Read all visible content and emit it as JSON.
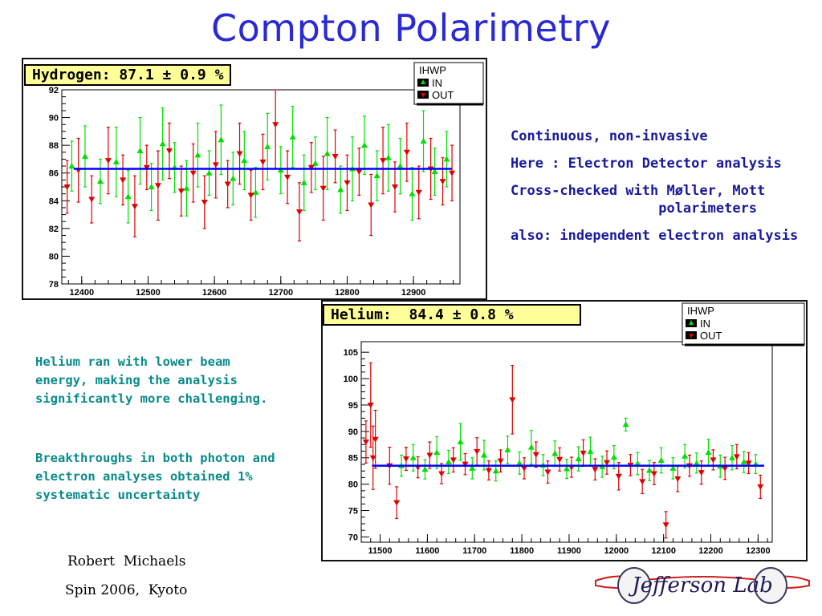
{
  "title": "Compton Polarimetry",
  "bullets": [
    "Continuous, non-invasive",
    "Here : Electron Detector analysis",
    "Cross-checked with Møller, Mott",
    "                  polarimeters",
    "also: independent electron analysis"
  ],
  "note1": [
    "Helium ran with lower beam",
    "energy, making the analysis",
    "significantly more challenging."
  ],
  "note2": [
    "Breakthroughs in both photon and",
    "electron analyses obtained 1%",
    "systematic uncertainty"
  ],
  "author": "Robert  Michaels",
  "event": "Spin 2006,  Kyoto",
  "logo_text": "Jefferson Lab",
  "colors": {
    "title": "#2a2ad4",
    "in": "#00e000",
    "out": "#e00000",
    "fit": "#0000ff",
    "note": "#0a8a8a"
  },
  "chart_data": [
    {
      "type": "scatter",
      "label": "Hydrogen: 87.1 ± 0.9 %",
      "legend": {
        "title": "IHWP",
        "entries": [
          "IN",
          "OUT"
        ],
        "placement": "top-right"
      },
      "xlim": [
        12370,
        12970
      ],
      "ylim": [
        78,
        92
      ],
      "xticks": [
        12400,
        12500,
        12600,
        12700,
        12800,
        12900
      ],
      "yticks": [
        78,
        80,
        82,
        84,
        86,
        88,
        90,
        92
      ],
      "fit_value": 86.3,
      "series": [
        {
          "name": "IN",
          "points": [
            [
              12385,
              86.5,
              1.8
            ],
            [
              12405,
              87.2,
              2.2
            ],
            [
              12428,
              85.4,
              1.6
            ],
            [
              12452,
              86.8,
              2.5
            ],
            [
              12470,
              84.3,
              1.9
            ],
            [
              12488,
              87.6,
              2.4
            ],
            [
              12505,
              85.0,
              1.7
            ],
            [
              12522,
              88.1,
              2.6
            ],
            [
              12540,
              86.4,
              1.8
            ],
            [
              12558,
              84.9,
              2.0
            ],
            [
              12575,
              87.3,
              2.3
            ],
            [
              12592,
              86.0,
              1.6
            ],
            [
              12610,
              88.4,
              2.5
            ],
            [
              12628,
              85.6,
              1.9
            ],
            [
              12645,
              86.9,
              2.1
            ],
            [
              12662,
              84.6,
              1.8
            ],
            [
              12680,
              87.9,
              2.4
            ],
            [
              12700,
              86.2,
              1.7
            ],
            [
              12718,
              88.6,
              2.2
            ],
            [
              12735,
              85.3,
              2.0
            ],
            [
              12752,
              86.7,
              1.9
            ],
            [
              12770,
              87.4,
              2.6
            ],
            [
              12790,
              84.8,
              1.7
            ],
            [
              12808,
              86.3,
              2.3
            ],
            [
              12826,
              88.0,
              2.1
            ],
            [
              12845,
              85.8,
              1.8
            ],
            [
              12862,
              87.1,
              2.4
            ],
            [
              12880,
              86.5,
              2.0
            ],
            [
              12898,
              84.5,
              1.9
            ],
            [
              12915,
              88.3,
              2.2
            ],
            [
              12932,
              86.1,
              1.7
            ],
            [
              12950,
              87.0,
              2.0
            ]
          ]
        },
        {
          "name": "OUT",
          "points": [
            [
              12378,
              85.0,
              1.9
            ],
            [
              12395,
              86.2,
              2.3
            ],
            [
              12415,
              84.1,
              1.7
            ],
            [
              12440,
              86.9,
              2.4
            ],
            [
              12462,
              85.5,
              1.8
            ],
            [
              12480,
              83.6,
              2.2
            ],
            [
              12498,
              86.4,
              1.6
            ],
            [
              12515,
              85.1,
              2.5
            ],
            [
              12532,
              87.6,
              2.0
            ],
            [
              12550,
              84.7,
              1.8
            ],
            [
              12568,
              86.0,
              2.1
            ],
            [
              12585,
              83.9,
              1.9
            ],
            [
              12602,
              86.6,
              2.4
            ],
            [
              12620,
              85.2,
              1.7
            ],
            [
              12638,
              87.4,
              2.2
            ],
            [
              12655,
              84.4,
              1.8
            ],
            [
              12673,
              86.8,
              2.0
            ],
            [
              12692,
              89.5,
              3.2
            ],
            [
              12710,
              85.7,
              1.9
            ],
            [
              12728,
              83.2,
              2.1
            ],
            [
              12746,
              86.4,
              1.8
            ],
            [
              12764,
              84.9,
              2.3
            ],
            [
              12782,
              87.2,
              1.9
            ],
            [
              12800,
              85.3,
              2.0
            ],
            [
              12818,
              86.1,
              1.7
            ],
            [
              12836,
              83.7,
              2.2
            ],
            [
              12854,
              86.9,
              2.4
            ],
            [
              12872,
              85.0,
              1.8
            ],
            [
              12890,
              87.5,
              2.1
            ],
            [
              12908,
              84.6,
              1.9
            ],
            [
              12926,
              86.3,
              2.2
            ],
            [
              12944,
              85.4,
              1.7
            ],
            [
              12958,
              86.0,
              2.0
            ]
          ]
        }
      ]
    },
    {
      "type": "scatter",
      "label": "Helium:  84.4 ± 0.8 %",
      "legend": {
        "title": "IHWP",
        "entries": [
          "IN",
          "OUT"
        ],
        "placement": "top-right"
      },
      "xlim": [
        11460,
        12330
      ],
      "ylim": [
        69,
        107
      ],
      "xticks": [
        11500,
        11600,
        11700,
        11800,
        11900,
        12000,
        12100,
        12200,
        12300
      ],
      "yticks": [
        70,
        75,
        80,
        85,
        90,
        95,
        100,
        105
      ],
      "fit_value": 83.5,
      "series": [
        {
          "name": "IN",
          "points": [
            [
              11545,
              83.5,
              2.0
            ],
            [
              11570,
              85.0,
              2.5
            ],
            [
              11595,
              82.8,
              1.8
            ],
            [
              11620,
              86.0,
              3.0
            ],
            [
              11645,
              84.2,
              2.2
            ],
            [
              11670,
              88.0,
              3.5
            ],
            [
              11695,
              83.0,
              2.0
            ],
            [
              11720,
              85.5,
              2.8
            ],
            [
              11745,
              82.5,
              1.9
            ],
            [
              11770,
              86.5,
              2.6
            ],
            [
              11795,
              84.0,
              2.1
            ],
            [
              11820,
              87.0,
              3.2
            ],
            [
              11845,
              83.6,
              2.0
            ],
            [
              11870,
              85.8,
              2.4
            ],
            [
              11895,
              82.9,
              1.8
            ],
            [
              11920,
              84.8,
              2.3
            ],
            [
              11945,
              86.2,
              2.7
            ],
            [
              11970,
              83.3,
              2.0
            ],
            [
              11995,
              85.1,
              2.2
            ],
            [
              12020,
              91.3,
              1.2
            ],
            [
              12045,
              83.9,
              2.1
            ],
            [
              12070,
              82.6,
              1.9
            ],
            [
              12095,
              84.5,
              2.4
            ],
            [
              12120,
              83.0,
              2.0
            ],
            [
              12145,
              85.3,
              2.2
            ],
            [
              12170,
              84.0,
              1.9
            ],
            [
              12195,
              86.0,
              2.5
            ],
            [
              12220,
              83.4,
              2.1
            ],
            [
              12245,
              85.0,
              2.3
            ],
            [
              12270,
              84.2,
              2.0
            ],
            [
              12295,
              83.8,
              1.8
            ]
          ]
        },
        {
          "name": "OUT",
          "points": [
            [
              11470,
              88.0,
              4.0
            ],
            [
              11480,
              95.0,
              8.0
            ],
            [
              11485,
              85.0,
              6.0
            ],
            [
              11490,
              88.5,
              5.5
            ],
            [
              11520,
              83.5,
              3.5
            ],
            [
              11535,
              76.5,
              3.0
            ],
            [
              11555,
              84.8,
              2.2
            ],
            [
              11580,
              83.2,
              2.0
            ],
            [
              11605,
              85.5,
              2.5
            ],
            [
              11630,
              82.0,
              1.9
            ],
            [
              11655,
              84.6,
              2.3
            ],
            [
              11680,
              83.8,
              2.0
            ],
            [
              11705,
              86.2,
              2.6
            ],
            [
              11730,
              82.6,
              1.8
            ],
            [
              11755,
              84.4,
              2.1
            ],
            [
              11780,
              96.0,
              6.5
            ],
            [
              11805,
              83.0,
              2.0
            ],
            [
              11830,
              85.6,
              2.4
            ],
            [
              11855,
              82.3,
              2.1
            ],
            [
              11880,
              84.7,
              2.2
            ],
            [
              11905,
              83.2,
              1.9
            ],
            [
              11930,
              85.9,
              2.5
            ],
            [
              11955,
              82.8,
              2.0
            ],
            [
              11980,
              84.1,
              2.2
            ],
            [
              12005,
              81.5,
              2.6
            ],
            [
              12030,
              83.6,
              2.0
            ],
            [
              12055,
              80.5,
              2.3
            ],
            [
              12080,
              82.0,
              2.1
            ],
            [
              12105,
              72.3,
              2.5
            ],
            [
              12130,
              81.0,
              2.4
            ],
            [
              12155,
              83.5,
              2.0
            ],
            [
              12180,
              82.2,
              2.2
            ],
            [
              12205,
              84.6,
              1.9
            ],
            [
              12230,
              83.0,
              2.1
            ],
            [
              12255,
              85.2,
              2.3
            ],
            [
              12280,
              84.0,
              2.0
            ],
            [
              12305,
              79.5,
              2.2
            ]
          ]
        }
      ]
    }
  ]
}
